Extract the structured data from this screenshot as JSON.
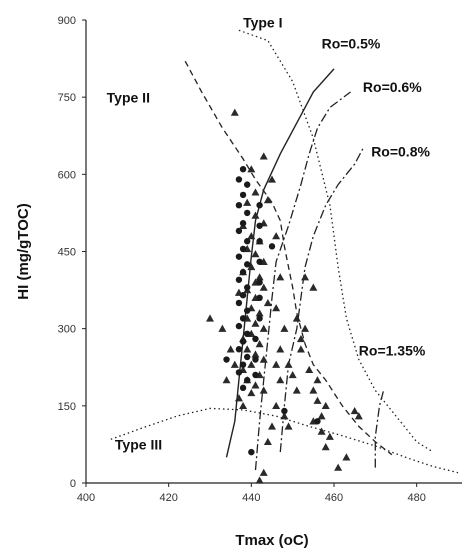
{
  "chart_data": {
    "type": "scatter",
    "title": "",
    "xlabel": "Tmax (oC)",
    "ylabel": "HI (mg/gTOC)",
    "xlim": [
      400,
      490
    ],
    "ylim": [
      0,
      900
    ],
    "xticks": [
      400,
      420,
      440,
      460,
      480
    ],
    "yticks": [
      0,
      150,
      300,
      450,
      600,
      750,
      900
    ],
    "xtick_labels": [
      "400",
      "420",
      "440",
      "460",
      "480"
    ],
    "ytick_labels": [
      "0",
      "150",
      "300",
      "450",
      "600",
      "750",
      "900"
    ],
    "grid": false,
    "series": [
      {
        "marker": "triangle",
        "points": [
          [
            436,
            720
          ],
          [
            440,
            610
          ],
          [
            441,
            565
          ],
          [
            439,
            545
          ],
          [
            441,
            520
          ],
          [
            443,
            505
          ],
          [
            438,
            500
          ],
          [
            440,
            480
          ],
          [
            442,
            470
          ],
          [
            439,
            455
          ],
          [
            441,
            445
          ],
          [
            443,
            430
          ],
          [
            440,
            420
          ],
          [
            438,
            410
          ],
          [
            442,
            400
          ],
          [
            441,
            390
          ],
          [
            443,
            380
          ],
          [
            439,
            375
          ],
          [
            437,
            370
          ],
          [
            441,
            360
          ],
          [
            444,
            350
          ],
          [
            440,
            340
          ],
          [
            442,
            330
          ],
          [
            439,
            320
          ],
          [
            441,
            310
          ],
          [
            443,
            300
          ],
          [
            440,
            290
          ],
          [
            438,
            280
          ],
          [
            442,
            270
          ],
          [
            439,
            260
          ],
          [
            441,
            250
          ],
          [
            443,
            240
          ],
          [
            440,
            230
          ],
          [
            438,
            220
          ],
          [
            442,
            210
          ],
          [
            439,
            200
          ],
          [
            441,
            190
          ],
          [
            443,
            180
          ],
          [
            440,
            175
          ],
          [
            437,
            165
          ],
          [
            435,
            260
          ],
          [
            433,
            300
          ],
          [
            430,
            320
          ],
          [
            434,
            200
          ],
          [
            436,
            230
          ],
          [
            438,
            150
          ],
          [
            446,
            480
          ],
          [
            447,
            400
          ],
          [
            446,
            340
          ],
          [
            448,
            300
          ],
          [
            447,
            260
          ],
          [
            449,
            230
          ],
          [
            447,
            200
          ],
          [
            446,
            150
          ],
          [
            448,
            130
          ],
          [
            449,
            110
          ],
          [
            444,
            550
          ],
          [
            443,
            635
          ],
          [
            445,
            590
          ],
          [
            451,
            320
          ],
          [
            453,
            300
          ],
          [
            452,
            260
          ],
          [
            454,
            220
          ],
          [
            456,
            200
          ],
          [
            455,
            180
          ],
          [
            456,
            160
          ],
          [
            458,
            150
          ],
          [
            457,
            130
          ],
          [
            452,
            280
          ],
          [
            455,
            380
          ],
          [
            455,
            120
          ],
          [
            457,
            100
          ],
          [
            459,
            90
          ],
          [
            458,
            70
          ],
          [
            461,
            30
          ],
          [
            463,
            50
          ],
          [
            466,
            130
          ],
          [
            465,
            140
          ],
          [
            453,
            400
          ],
          [
            450,
            210
          ],
          [
            451,
            180
          ],
          [
            446,
            230
          ],
          [
            445,
            110
          ],
          [
            443,
            20
          ],
          [
            442,
            5
          ],
          [
            444,
            80
          ]
        ]
      },
      {
        "marker": "circle",
        "points": [
          [
            438,
            610
          ],
          [
            437,
            590
          ],
          [
            439,
            580
          ],
          [
            438,
            560
          ],
          [
            437,
            540
          ],
          [
            439,
            525
          ],
          [
            438,
            505
          ],
          [
            437,
            490
          ],
          [
            439,
            470
          ],
          [
            438,
            455
          ],
          [
            437,
            440
          ],
          [
            439,
            425
          ],
          [
            438,
            410
          ],
          [
            437,
            395
          ],
          [
            439,
            380
          ],
          [
            438,
            365
          ],
          [
            437,
            350
          ],
          [
            439,
            335
          ],
          [
            438,
            320
          ],
          [
            437,
            305
          ],
          [
            439,
            290
          ],
          [
            438,
            275
          ],
          [
            437,
            260
          ],
          [
            439,
            245
          ],
          [
            438,
            230
          ],
          [
            437,
            215
          ],
          [
            439,
            200
          ],
          [
            438,
            185
          ],
          [
            442,
            540
          ],
          [
            442,
            500
          ],
          [
            442,
            470
          ],
          [
            442,
            430
          ],
          [
            442,
            390
          ],
          [
            442,
            360
          ],
          [
            442,
            320
          ],
          [
            441,
            280
          ],
          [
            441,
            240
          ],
          [
            441,
            210
          ],
          [
            440,
            60
          ],
          [
            434,
            240
          ],
          [
            448,
            140
          ],
          [
            456,
            120
          ],
          [
            445,
            460
          ]
        ]
      }
    ],
    "curves": [
      {
        "label": "Type I",
        "style": "dotted",
        "points": [
          [
            437,
            880
          ],
          [
            444,
            860
          ],
          [
            450,
            780
          ],
          [
            455,
            670
          ],
          [
            459,
            540
          ],
          [
            461,
            420
          ],
          [
            463,
            320
          ],
          [
            466,
            240
          ],
          [
            470,
            180
          ],
          [
            475,
            130
          ],
          [
            480,
            80
          ],
          [
            484,
            60
          ]
        ]
      },
      {
        "label": "Type II",
        "style": "dashed",
        "points": [
          [
            424,
            820
          ],
          [
            428,
            760
          ],
          [
            433,
            690
          ],
          [
            438,
            630
          ],
          [
            441,
            590
          ],
          [
            445,
            545
          ],
          [
            447,
            510
          ],
          [
            448,
            460
          ],
          [
            449,
            420
          ],
          [
            450,
            380
          ],
          [
            451,
            330
          ],
          [
            453,
            270
          ],
          [
            455,
            230
          ],
          [
            458,
            200
          ],
          [
            462,
            150
          ],
          [
            466,
            110
          ],
          [
            470,
            80
          ],
          [
            474,
            55
          ]
        ]
      },
      {
        "label": "Type III",
        "style": "dotted",
        "points": [
          [
            406,
            85
          ],
          [
            414,
            108
          ],
          [
            422,
            130
          ],
          [
            430,
            145
          ],
          [
            438,
            142
          ],
          [
            446,
            130
          ],
          [
            454,
            110
          ],
          [
            462,
            92
          ],
          [
            470,
            72
          ],
          [
            478,
            48
          ],
          [
            484,
            32
          ],
          [
            490,
            20
          ]
        ]
      },
      {
        "label": "Ro=0.5%",
        "style": "solid",
        "points": [
          [
            434,
            50
          ],
          [
            436,
            120
          ],
          [
            437,
            200
          ],
          [
            438,
            280
          ],
          [
            439,
            360
          ],
          [
            440,
            440
          ],
          [
            441,
            510
          ],
          [
            443,
            570
          ],
          [
            447,
            640
          ],
          [
            451,
            700
          ],
          [
            455,
            760
          ],
          [
            460,
            805
          ]
        ]
      },
      {
        "label": "Ro=0.6%",
        "style": "dashdot",
        "points": [
          [
            441,
            25
          ],
          [
            442,
            120
          ],
          [
            443,
            200
          ],
          [
            444,
            280
          ],
          [
            445,
            360
          ],
          [
            446,
            430
          ],
          [
            449,
            500
          ],
          [
            452,
            580
          ],
          [
            454,
            640
          ],
          [
            456,
            690
          ],
          [
            459,
            730
          ],
          [
            464,
            760
          ]
        ]
      },
      {
        "label": "Ro=0.8%",
        "style": "dashdot",
        "points": [
          [
            447,
            60
          ],
          [
            448,
            150
          ],
          [
            449,
            230
          ],
          [
            451,
            300
          ],
          [
            452,
            360
          ],
          [
            453,
            420
          ],
          [
            455,
            480
          ],
          [
            458,
            540
          ],
          [
            461,
            580
          ],
          [
            465,
            620
          ],
          [
            467,
            650
          ]
        ]
      },
      {
        "label": "Ro=1.35%",
        "style": "dashdot",
        "points": [
          [
            470,
            30
          ],
          [
            470,
            90
          ],
          [
            471,
            150
          ],
          [
            472,
            180
          ]
        ]
      }
    ],
    "annotations": [
      {
        "text": "Type I",
        "x": 438,
        "y": 885
      },
      {
        "text": "Type II",
        "x": 405,
        "y": 740
      },
      {
        "text": "Type III",
        "x": 407,
        "y": 65
      },
      {
        "text": "Ro=0.5%",
        "x": 457,
        "y": 845
      },
      {
        "text": "Ro=0.6%",
        "x": 467,
        "y": 760
      },
      {
        "text": "Ro=0.8%",
        "x": 469,
        "y": 635
      },
      {
        "text": "Ro=1.35%",
        "x": 466,
        "y": 248
      }
    ]
  }
}
